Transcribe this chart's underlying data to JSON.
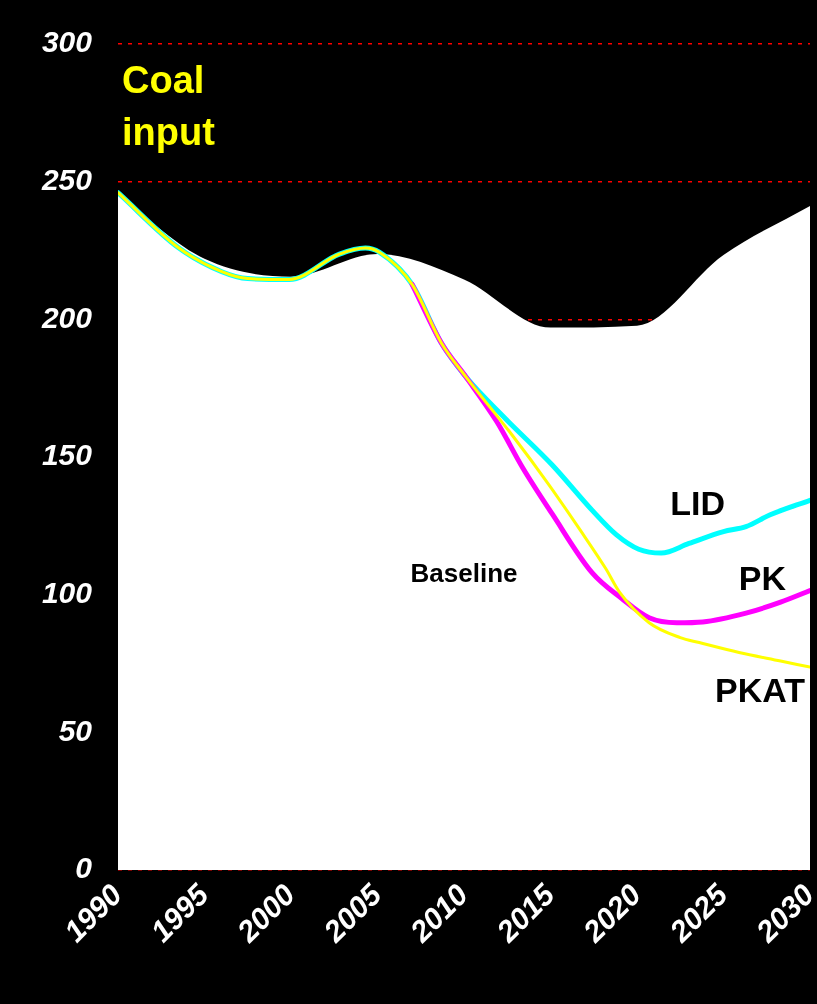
{
  "chart_data": {
    "type": "line",
    "title": "Coal input",
    "xlim": [
      1990,
      2030
    ],
    "xticks": [
      1990,
      1995,
      2000,
      2005,
      2010,
      2015,
      2020,
      2025,
      2030
    ],
    "ylim": [
      0,
      300
    ],
    "yticks": [
      0,
      50,
      100,
      150,
      200,
      250,
      300
    ],
    "grid": "y",
    "legend": false,
    "marker": "none",
    "series": [
      {
        "name": "Baseline",
        "type": "area",
        "color": "#ffffff",
        "x": [
          1990,
          1995,
          2000,
          2005,
          2010,
          2015,
          2020,
          2025,
          2030
        ],
        "values": [
          245,
          222,
          215.5,
          223.7,
          214.5,
          197,
          197.7,
          223.4,
          241.2
        ]
      },
      {
        "name": "LID",
        "type": "line",
        "color": "#00ffff",
        "x": [
          1990,
          1993.5,
          1996,
          1997.5,
          1999.9,
          2002.8,
          2004.3,
          2005.1,
          2007,
          2008.7,
          2010.1,
          2012.4,
          2015.1,
          2017.4,
          2018.8,
          2020.1,
          2021.4,
          2023,
          2025,
          2026.3,
          2027.7,
          2030
        ],
        "values": [
          246,
          226,
          217.3,
          214.8,
          214.5,
          223.7,
          225.9,
          224.4,
          212.7,
          191.3,
          179.2,
          163.9,
          147.1,
          130.7,
          121.8,
          116.5,
          115.1,
          118.6,
          122.9,
          124.7,
          129,
          134.3
        ]
      },
      {
        "name": "PK",
        "type": "line",
        "color": "#ff00ff",
        "x": [
          null,
          null,
          null,
          null,
          null,
          null,
          null,
          null,
          2007,
          2008.7,
          2010.1,
          2011.9,
          2013.4,
          2015.1,
          2017.4,
          2019.1,
          2020.7,
          2022.3,
          2023.8,
          2026.3,
          2028.3,
          2030
        ],
        "values": [
          null,
          null,
          null,
          null,
          null,
          null,
          null,
          null,
          212.7,
          191.3,
          179.2,
          162.8,
          146,
          129.3,
          108,
          98.7,
          91.6,
          89.8,
          90.1,
          93.3,
          97.3,
          101.5
        ]
      },
      {
        "name": "PKAT",
        "type": "line",
        "color": "#ffff00",
        "x": [
          1990,
          1993.5,
          1996,
          1997.5,
          1999.9,
          2002.8,
          2004.3,
          2005.1,
          2007,
          2008.7,
          2010.1,
          2012.8,
          2014.9,
          2016.7,
          2018.2,
          2019,
          2020.7,
          2022.5,
          2023.6,
          2025.9,
          2028.3,
          2030
        ],
        "values": [
          246,
          226,
          217.3,
          214.8,
          214.5,
          223.7,
          225.9,
          224.4,
          212.7,
          191.3,
          179.2,
          157.8,
          140,
          123.6,
          109.4,
          100.8,
          89.8,
          84.4,
          82.6,
          79,
          75.9,
          73.7
        ]
      }
    ]
  }
}
